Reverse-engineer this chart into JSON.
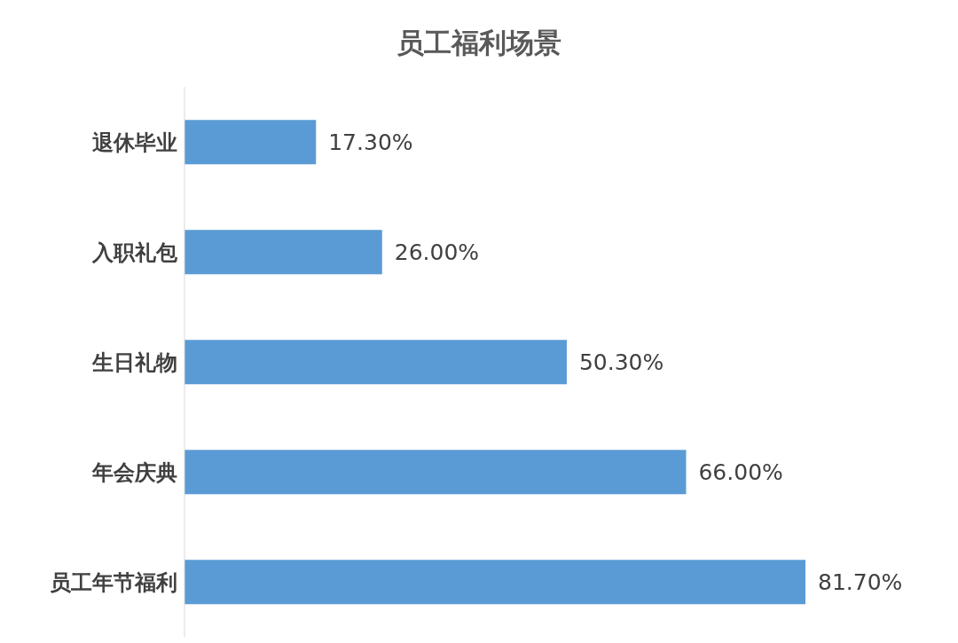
{
  "chart_data": {
    "type": "bar",
    "title": "员工福利场景",
    "orientation": "horizontal",
    "categories": [
      "退休毕业",
      "入职礼包",
      "生日礼物",
      "年会庆典",
      "员工年节福利"
    ],
    "values": [
      17.3,
      26.0,
      50.3,
      66.0,
      81.7
    ],
    "value_labels": [
      "17.30%",
      "26.00%",
      "50.30%",
      "66.00%",
      "81.70%"
    ],
    "color": "#5b9bd5"
  }
}
